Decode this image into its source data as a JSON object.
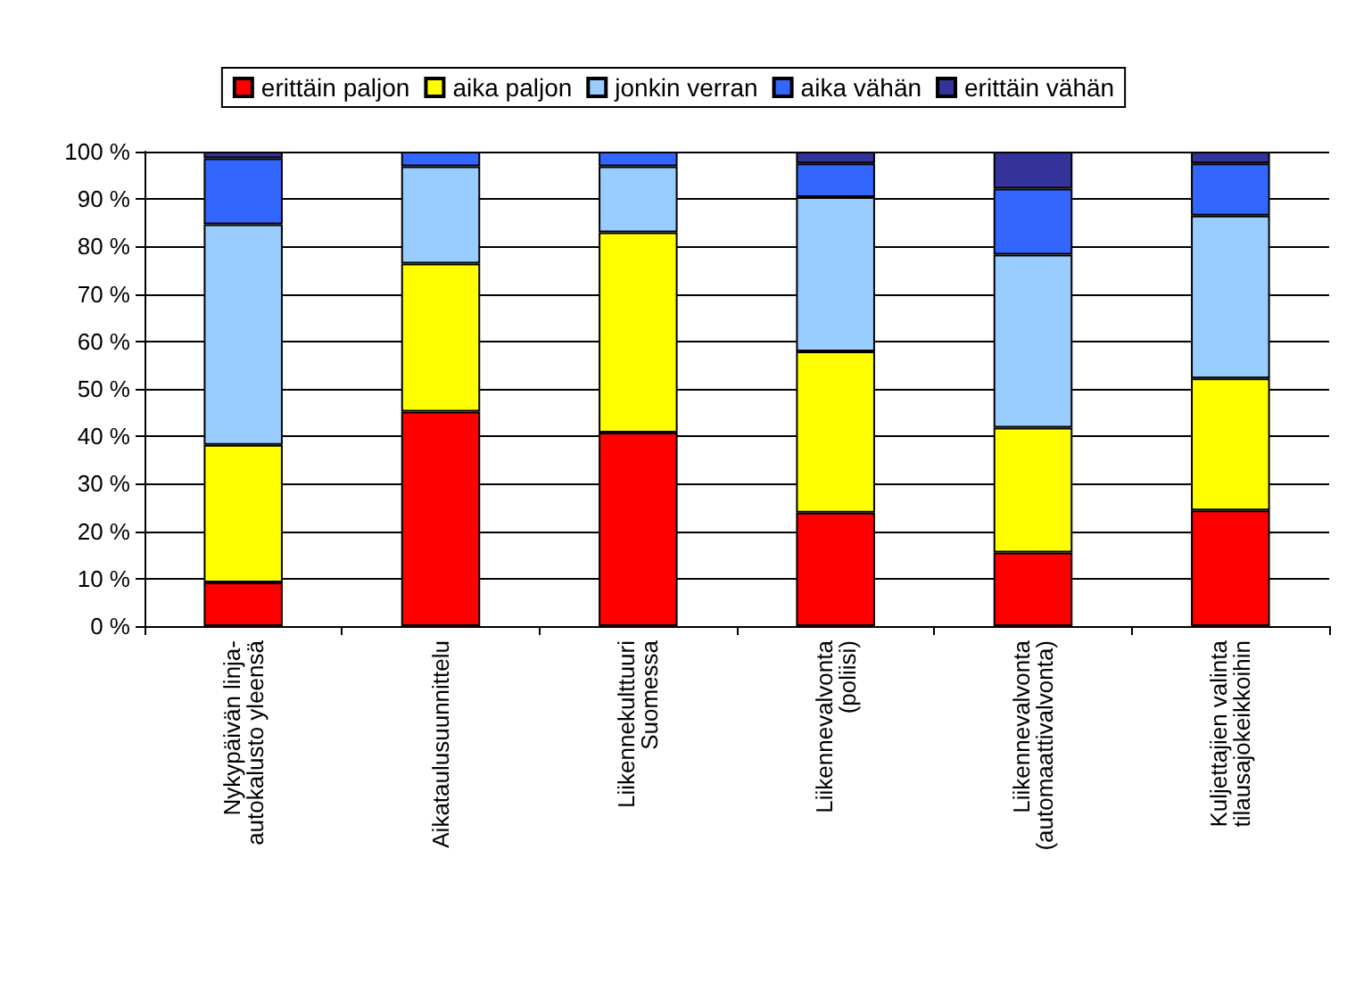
{
  "chart_data": {
    "type": "bar",
    "stacked": true,
    "categories": [
      "Nykypäivän linja-\nautokalusto yleensä",
      "Aikataulusuunnittelu",
      "Liikennekulttuuri\nSuomessa",
      "Liikennevalvonta\n(poliisi)",
      "Liikennevalvonta\n(automaattivalvonta)",
      "Kuljettajien valinta\ntilausajokeikkoihin"
    ],
    "series": [
      {
        "name": "erittäin paljon",
        "color": "#ff0000",
        "values": [
          9.2,
          45.2,
          40.8,
          23.9,
          15.5,
          24.4
        ]
      },
      {
        "name": "aika paljon",
        "color": "#ffff00",
        "values": [
          29,
          31.2,
          42.2,
          34,
          26.3,
          27.8
        ]
      },
      {
        "name": "jonkin verran",
        "color": "#99ccff",
        "values": [
          46.5,
          20.5,
          13.9,
          32.5,
          36.5,
          34.3
        ]
      },
      {
        "name": "aika vähän",
        "color": "#3366ff",
        "values": [
          13.9,
          3.1,
          3.1,
          7.1,
          13.9,
          11
        ]
      },
      {
        "name": "erittäin vähän",
        "color": "#333399",
        "values": [
          1.4,
          0,
          0,
          2.5,
          7.8,
          2.5
        ]
      }
    ],
    "ylim": [
      0,
      100
    ],
    "yticks": [
      {
        "value": 0,
        "label": "0 %"
      },
      {
        "value": 10,
        "label": "10 %"
      },
      {
        "value": 20,
        "label": "20 %"
      },
      {
        "value": 30,
        "label": "30 %"
      },
      {
        "value": 40,
        "label": "40 %"
      },
      {
        "value": 50,
        "label": "50 %"
      },
      {
        "value": 60,
        "label": "60 %"
      },
      {
        "value": 70,
        "label": "70 %"
      },
      {
        "value": 80,
        "label": "80 %"
      },
      {
        "value": 90,
        "label": "90 %"
      },
      {
        "value": 100,
        "label": "100 %"
      }
    ],
    "grid": "y",
    "legend": "top"
  }
}
